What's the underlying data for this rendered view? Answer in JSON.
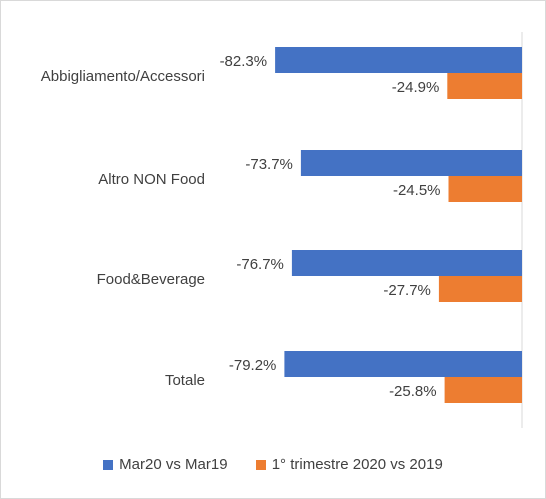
{
  "chart_data": {
    "type": "bar",
    "orientation": "horizontal",
    "categories": [
      "Abbigliamento/Accessori",
      "Altro NON Food",
      "Food&Beverage",
      "Totale"
    ],
    "series": [
      {
        "name": "Mar20 vs Mar19",
        "color": "#4472C4",
        "values": [
          -82.3,
          -73.7,
          -76.7,
          -79.2
        ],
        "labels": [
          "-82.3%",
          "-73.7%",
          "-76.7%",
          "-79.2%"
        ]
      },
      {
        "name": "1° trimestre 2020 vs 2019",
        "color": "#ED7D31",
        "values": [
          -24.9,
          -24.5,
          -27.7,
          -25.8
        ],
        "labels": [
          "-24.9%",
          "-24.5%",
          "-27.7%",
          "-25.8%"
        ]
      }
    ],
    "xlim": [
      -100,
      0
    ],
    "grid": false,
    "legend": "bottom"
  }
}
